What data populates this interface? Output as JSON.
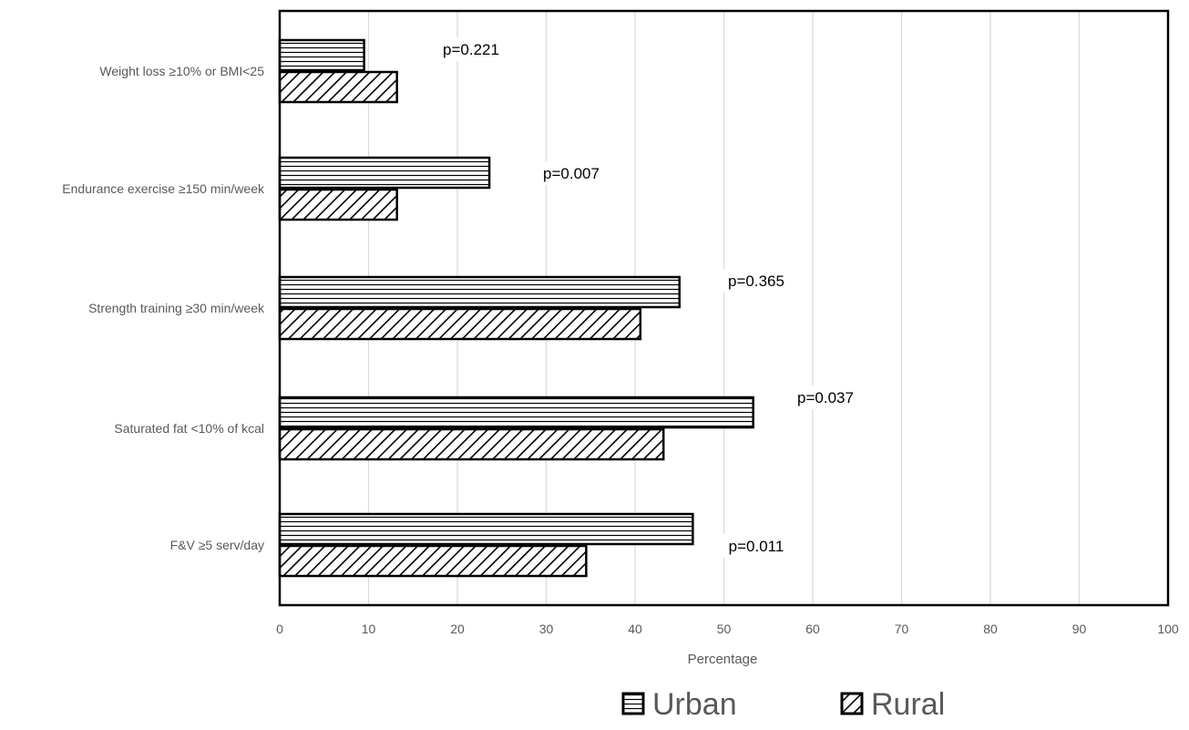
{
  "chart_data": {
    "type": "bar",
    "orientation": "horizontal",
    "categories": [
      "Weight loss ≥10% or BMI<25",
      "Endurance exercise ≥150 min/week",
      "Strength training ≥30 min/week",
      "Saturated fat <10% of kcal",
      "F&V ≥5 serv/day"
    ],
    "series": [
      {
        "name": "Urban",
        "values": [
          9.5,
          23.6,
          45.0,
          53.3,
          46.5
        ],
        "pattern": "horizontal-lines"
      },
      {
        "name": "Rural",
        "values": [
          13.2,
          13.2,
          40.6,
          43.2,
          34.5
        ],
        "pattern": "diagonal-hatch"
      }
    ],
    "annotations": [
      "p=0.221",
      "p=0.007",
      "p=0.365",
      "p=0.037",
      "p=0.011"
    ],
    "xlabel": "Percentage",
    "xlim": [
      0,
      100
    ],
    "xticks": [
      0,
      10,
      20,
      30,
      40,
      50,
      60,
      70,
      80,
      90,
      100
    ],
    "grid": true,
    "legend_position": "bottom",
    "colors": {
      "bar_stroke": "#000000",
      "grid": "#d9d9d9",
      "text": "#595959",
      "frame": "#000000"
    }
  }
}
